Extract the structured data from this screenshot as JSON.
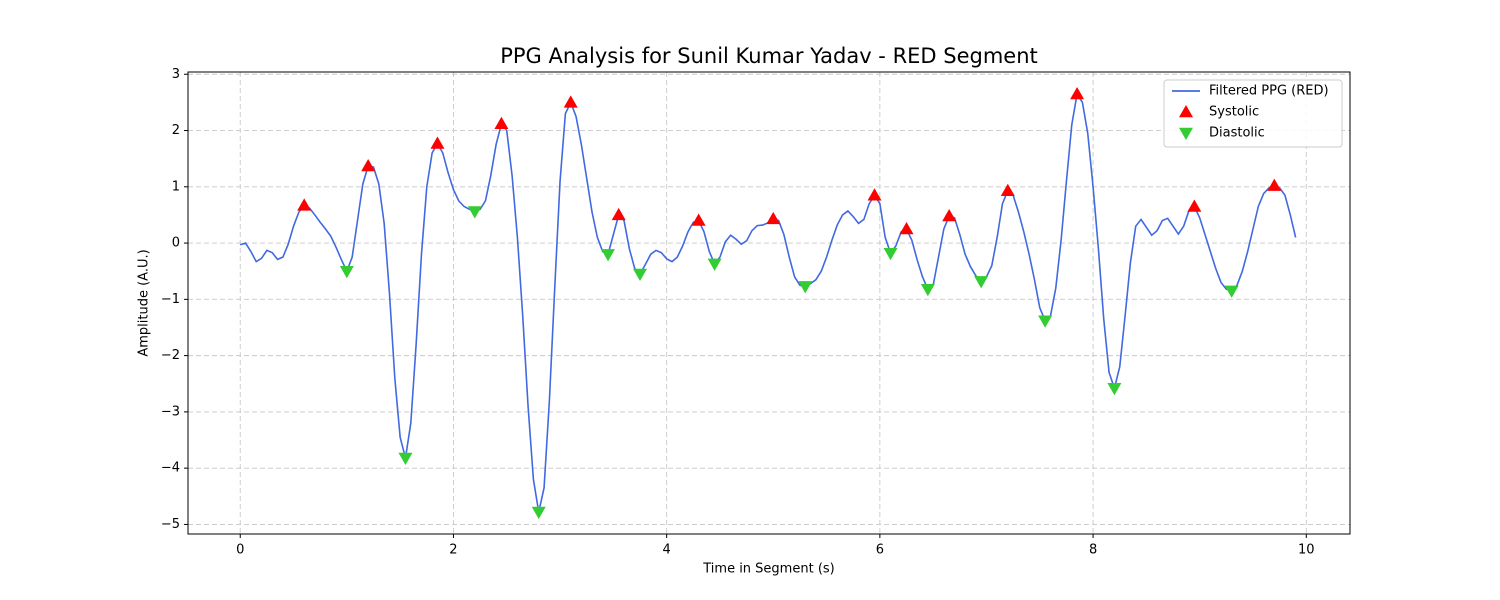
{
  "chart_data": {
    "type": "line",
    "title": "PPG Analysis for Sunil Kumar Yadav - RED Segment",
    "x_label": "Time in Segment (s)",
    "y_label": "Amplitude (A.U.)",
    "xlim": [
      -0.49,
      10.41
    ],
    "ylim": [
      -5.17,
      3.04
    ],
    "xticks": [
      0,
      2,
      4,
      6,
      8,
      10
    ],
    "yticks": [
      {
        "value": -5,
        "label": "−5"
      },
      {
        "value": -4,
        "label": "−4"
      },
      {
        "value": -3,
        "label": "−3"
      },
      {
        "value": -2,
        "label": "−2"
      },
      {
        "value": -1,
        "label": "−1"
      },
      0,
      1,
      2,
      3
    ],
    "grid": true,
    "legend": "upper right",
    "series": [
      {
        "name": "Filtered PPG (RED)",
        "color": "#4169e1",
        "style": "line",
        "x": [
          0,
          0.05,
          0.1,
          0.15,
          0.2,
          0.25,
          0.3,
          0.35,
          0.4,
          0.45,
          0.5,
          0.55,
          0.6,
          0.65,
          0.7,
          0.75,
          0.8,
          0.85,
          0.9,
          0.95,
          1.0,
          1.05,
          1.1,
          1.15,
          1.2,
          1.25,
          1.3,
          1.35,
          1.4,
          1.45,
          1.5,
          1.55,
          1.6,
          1.65,
          1.7,
          1.75,
          1.8,
          1.85,
          1.9,
          1.95,
          2.0,
          2.05,
          2.1,
          2.15,
          2.2,
          2.25,
          2.3,
          2.35,
          2.4,
          2.45,
          2.5,
          2.55,
          2.6,
          2.65,
          2.7,
          2.75,
          2.8,
          2.85,
          2.9,
          2.95,
          3.0,
          3.05,
          3.1,
          3.15,
          3.2,
          3.25,
          3.3,
          3.35,
          3.4,
          3.45,
          3.5,
          3.55,
          3.6,
          3.65,
          3.7,
          3.75,
          3.8,
          3.85,
          3.9,
          3.95,
          4.0,
          4.05,
          4.1,
          4.15,
          4.2,
          4.25,
          4.3,
          4.35,
          4.4,
          4.45,
          4.5,
          4.55,
          4.6,
          4.65,
          4.7,
          4.75,
          4.8,
          4.85,
          4.9,
          4.95,
          5.0,
          5.05,
          5.1,
          5.15,
          5.2,
          5.25,
          5.3,
          5.35,
          5.4,
          5.45,
          5.5,
          5.55,
          5.6,
          5.65,
          5.7,
          5.75,
          5.8,
          5.85,
          5.9,
          5.95,
          6.0,
          6.05,
          6.1,
          6.15,
          6.2,
          6.25,
          6.3,
          6.35,
          6.4,
          6.45,
          6.5,
          6.55,
          6.6,
          6.65,
          6.7,
          6.75,
          6.8,
          6.85,
          6.9,
          6.95,
          7.0,
          7.05,
          7.1,
          7.15,
          7.2,
          7.25,
          7.3,
          7.35,
          7.4,
          7.45,
          7.5,
          7.55,
          7.6,
          7.65,
          7.7,
          7.75,
          7.8,
          7.85,
          7.9,
          7.95,
          8.0,
          8.05,
          8.1,
          8.15,
          8.2,
          8.25,
          8.3,
          8.35,
          8.4,
          8.45,
          8.5,
          8.55,
          8.6,
          8.65,
          8.7,
          8.75,
          8.8,
          8.85,
          8.9,
          8.95,
          9.0,
          9.05,
          9.1,
          9.15,
          9.2,
          9.25,
          9.3,
          9.35,
          9.4,
          9.45,
          9.5,
          9.55,
          9.6,
          9.65,
          9.7,
          9.75,
          9.8,
          9.85,
          9.9
        ],
        "values": [
          -0.03,
          0.0,
          -0.15,
          -0.33,
          -0.27,
          -0.13,
          -0.17,
          -0.29,
          -0.25,
          -0.02,
          0.3,
          0.55,
          0.67,
          0.62,
          0.5,
          0.37,
          0.25,
          0.12,
          -0.08,
          -0.3,
          -0.5,
          -0.25,
          0.4,
          1.05,
          1.37,
          1.35,
          1.05,
          0.35,
          -0.9,
          -2.4,
          -3.45,
          -3.82,
          -3.2,
          -1.8,
          -0.2,
          1.0,
          1.6,
          1.77,
          1.6,
          1.25,
          0.95,
          0.75,
          0.65,
          0.6,
          0.56,
          0.6,
          0.75,
          1.2,
          1.75,
          2.12,
          2.0,
          1.2,
          0.1,
          -1.3,
          -2.9,
          -4.2,
          -4.78,
          -4.35,
          -2.8,
          -0.8,
          1.1,
          2.3,
          2.5,
          2.25,
          1.75,
          1.15,
          0.55,
          0.1,
          -0.15,
          -0.2,
          0.15,
          0.5,
          0.4,
          -0.1,
          -0.45,
          -0.55,
          -0.38,
          -0.2,
          -0.13,
          -0.17,
          -0.28,
          -0.33,
          -0.25,
          -0.05,
          0.2,
          0.37,
          0.4,
          0.2,
          -0.15,
          -0.37,
          -0.25,
          0.02,
          0.14,
          0.07,
          -0.02,
          0.04,
          0.22,
          0.31,
          0.32,
          0.36,
          0.43,
          0.4,
          0.15,
          -0.25,
          -0.6,
          -0.75,
          -0.77,
          -0.72,
          -0.65,
          -0.5,
          -0.25,
          0.05,
          0.32,
          0.5,
          0.57,
          0.47,
          0.35,
          0.42,
          0.7,
          0.85,
          0.7,
          0.1,
          -0.18,
          -0.05,
          0.2,
          0.25,
          0.05,
          -0.3,
          -0.6,
          -0.82,
          -0.75,
          -0.25,
          0.25,
          0.48,
          0.45,
          0.15,
          -0.2,
          -0.42,
          -0.58,
          -0.68,
          -0.6,
          -0.4,
          0.1,
          0.7,
          0.93,
          0.85,
          0.55,
          0.2,
          -0.2,
          -0.65,
          -1.15,
          -1.38,
          -1.3,
          -0.8,
          0.05,
          1.1,
          2.1,
          2.65,
          2.5,
          1.95,
          1.0,
          -0.1,
          -1.35,
          -2.3,
          -2.58,
          -2.2,
          -1.3,
          -0.35,
          0.3,
          0.42,
          0.28,
          0.14,
          0.22,
          0.4,
          0.44,
          0.3,
          0.16,
          0.3,
          0.58,
          0.65,
          0.45,
          0.15,
          -0.15,
          -0.45,
          -0.7,
          -0.82,
          -0.85,
          -0.75,
          -0.5,
          -0.15,
          0.25,
          0.65,
          0.88,
          0.98,
          1.02,
          0.98,
          0.85,
          0.5,
          0.1
        ]
      },
      {
        "name": "Systolic",
        "color": "#ff0000",
        "style": "triangle-up",
        "x": [
          0.6,
          1.2,
          1.85,
          2.45,
          3.1,
          3.55,
          4.3,
          5.0,
          5.95,
          6.25,
          6.65,
          7.2,
          7.85,
          8.95,
          9.7
        ],
        "values": [
          0.67,
          1.37,
          1.77,
          2.12,
          2.5,
          0.5,
          0.4,
          0.43,
          0.85,
          0.25,
          0.48,
          0.93,
          2.65,
          0.65,
          1.02
        ]
      },
      {
        "name": "Diastolic",
        "color": "#32cd32",
        "style": "triangle-down",
        "x": [
          1.0,
          1.55,
          2.2,
          2.8,
          3.45,
          3.75,
          4.45,
          5.3,
          6.1,
          6.45,
          6.95,
          7.55,
          8.2,
          9.3
        ],
        "values": [
          -0.5,
          -3.82,
          0.56,
          -4.78,
          -0.2,
          -0.55,
          -0.37,
          -0.77,
          -0.18,
          -0.82,
          -0.68,
          -1.38,
          -2.58,
          -0.85
        ]
      }
    ]
  }
}
